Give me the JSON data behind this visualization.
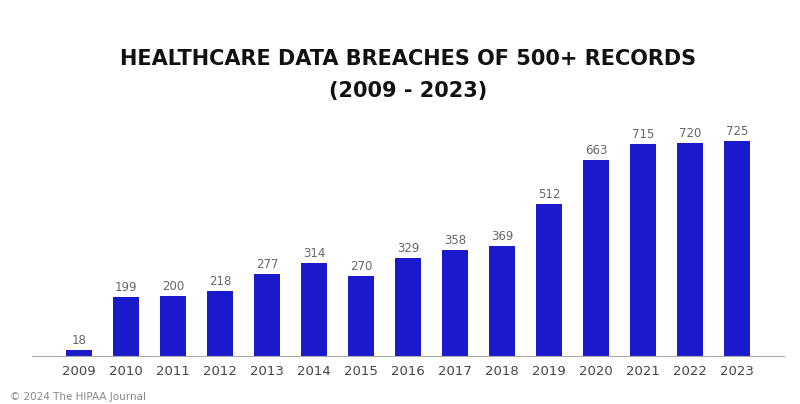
{
  "years": [
    "2009",
    "2010",
    "2011",
    "2012",
    "2013",
    "2014",
    "2015",
    "2016",
    "2017",
    "2018",
    "2019",
    "2020",
    "2021",
    "2022",
    "2023"
  ],
  "values": [
    18,
    199,
    200,
    218,
    277,
    314,
    270,
    329,
    358,
    369,
    512,
    663,
    715,
    720,
    725
  ],
  "bar_color": "#1a1acc",
  "title_line1": "HEALTHCARE DATA BREACHES OF 500+ RECORDS",
  "title_line2": "(2009 - 2023)",
  "label_color": "#666666",
  "label_fontsize": 8.5,
  "title_fontsize": 15,
  "xtick_fontsize": 9.5,
  "footer_text": "© 2024 The HIPAA Journal",
  "footer_fontsize": 7.5,
  "background_color": "#ffffff",
  "ylim": [
    0,
    820
  ]
}
